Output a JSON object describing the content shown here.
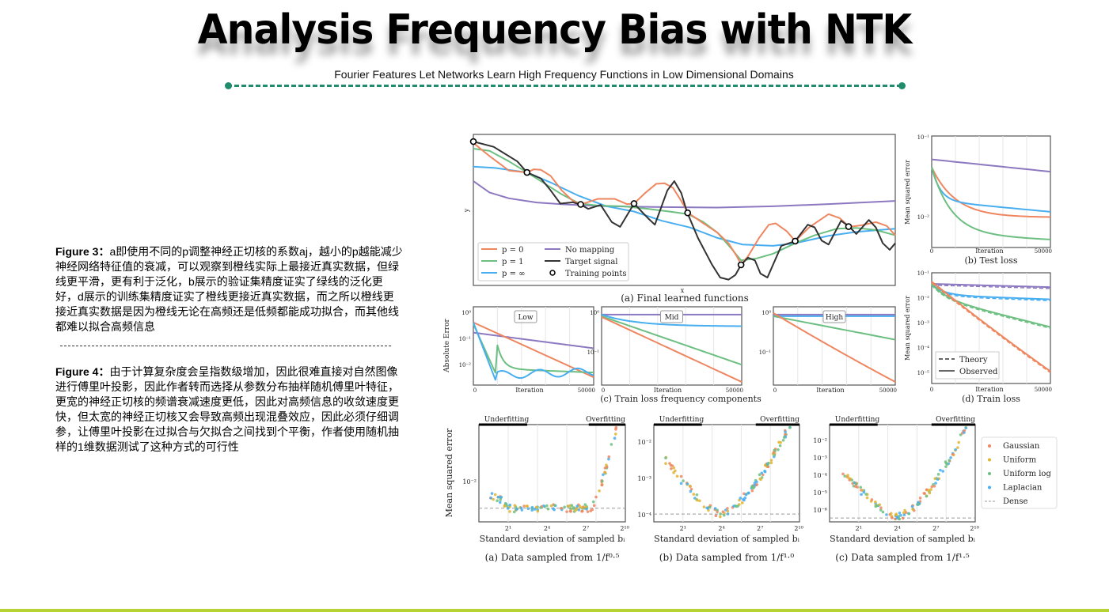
{
  "header": {
    "title": "Analysis Frequency Bias with NTK",
    "subtitle": "Fourier Features Let Networks Learn High Frequency Functions in Low Dimensional Domains"
  },
  "notes": {
    "figure3_label": "Figure 3：",
    "figure3_text": "a即使用不同的p调整神经正切核的系数aj，越小的p越能减少神经网络特征值的衰减，可以观察到橙线实际上最接近真实数据，但绿线更平滑，更有利于泛化，b展示的验证集精度证实了绿线的泛化更好，d展示的训练集精度证实了橙线更接近真实数据，而之所以橙线更接近真实数据是因为橙线无论在高频还是低频都能成功拟合，而其他线都难以拟合高频信息",
    "separator": "-------------------------------------------------------",
    "figure4_label": "Figure 4：",
    "figure4_text": "由于计算复杂度会呈指数级增加，因此很难直接对自然图像进行傅里叶投影，因此作者转而选择从参数分布抽样随机傅里叶特征，更宽的神经正切核的频谱衰减速度更低，因此对高频信息的收敛速度更快，但太宽的神经正切核又会导致高频出现混叠效应，因此必须仔细调参，让傅里叶投影在过拟合与欠拟合之间找到个平衡，作者使用随机抽样的1维数据测试了这种方式的可行性"
  },
  "colors": {
    "accent": "#1f8c6c",
    "p0": "#ee8660",
    "p1": "#6cbf80",
    "pinf": "#48aef0",
    "nomap": "#8c78c0",
    "target": "#333333",
    "uniform": "#e0b430"
  },
  "figure3": {
    "a": {
      "caption": "(a) Final learned functions",
      "xlabel": "x",
      "ylabel": "y",
      "legend": [
        "p = 0",
        "p = 1",
        "p = ∞",
        "No mapping",
        "Target signal",
        "Training points"
      ]
    },
    "b": {
      "caption": "(b) Test loss",
      "ylabel": "Mean squared error",
      "xlabel": "Iteration",
      "yticks": [
        "10⁻¹",
        "10⁻²"
      ],
      "xticks": [
        "0",
        "50000"
      ]
    },
    "c": {
      "caption": "(c) Train loss frequency components",
      "ylabel": "Absolute Error",
      "xlabel": "Iteration",
      "xticks": [
        "0",
        "50000"
      ],
      "panels": [
        {
          "label": "Low",
          "yticks": [
            "10⁰",
            "10⁻¹",
            "10⁻²"
          ]
        },
        {
          "label": "Mid",
          "yticks": [
            "10⁰",
            "10⁻¹"
          ]
        },
        {
          "label": "High",
          "yticks": [
            "10⁰",
            "10⁻¹"
          ]
        }
      ]
    },
    "d": {
      "caption": "(d) Train loss",
      "ylabel": "Mean squared error",
      "xlabel": "Iteration",
      "xticks": [
        "0",
        "50000"
      ],
      "yticks": [
        "10⁻¹",
        "10⁻²",
        "10⁻³",
        "10⁻⁴",
        "10⁻⁵"
      ],
      "legend": [
        "Theory",
        "Observed"
      ]
    }
  },
  "figure4": {
    "ylabel": "Mean squared error",
    "xlabel": "Standard deviation of sampled bᵢ",
    "xticks": [
      "2¹",
      "2⁴",
      "2⁷",
      "2¹⁰"
    ],
    "underfitting": "Underfitting",
    "overfitting": "Overfitting",
    "panels": [
      {
        "caption": "(a) Data sampled from 1/f⁰·⁵",
        "yticks": [
          "10⁻²"
        ]
      },
      {
        "caption": "(b) Data sampled from 1/f¹·⁰",
        "yticks": [
          "10⁻²",
          "10⁻³",
          "10⁻⁴"
        ]
      },
      {
        "caption": "(c) Data sampled from 1/f¹·⁵",
        "yticks": [
          "10⁻²",
          "10⁻³",
          "10⁻⁴",
          "10⁻⁵",
          "10⁻⁶"
        ]
      }
    ],
    "legend": [
      "Gaussian",
      "Uniform",
      "Uniform log",
      "Laplacian",
      "Dense"
    ]
  }
}
